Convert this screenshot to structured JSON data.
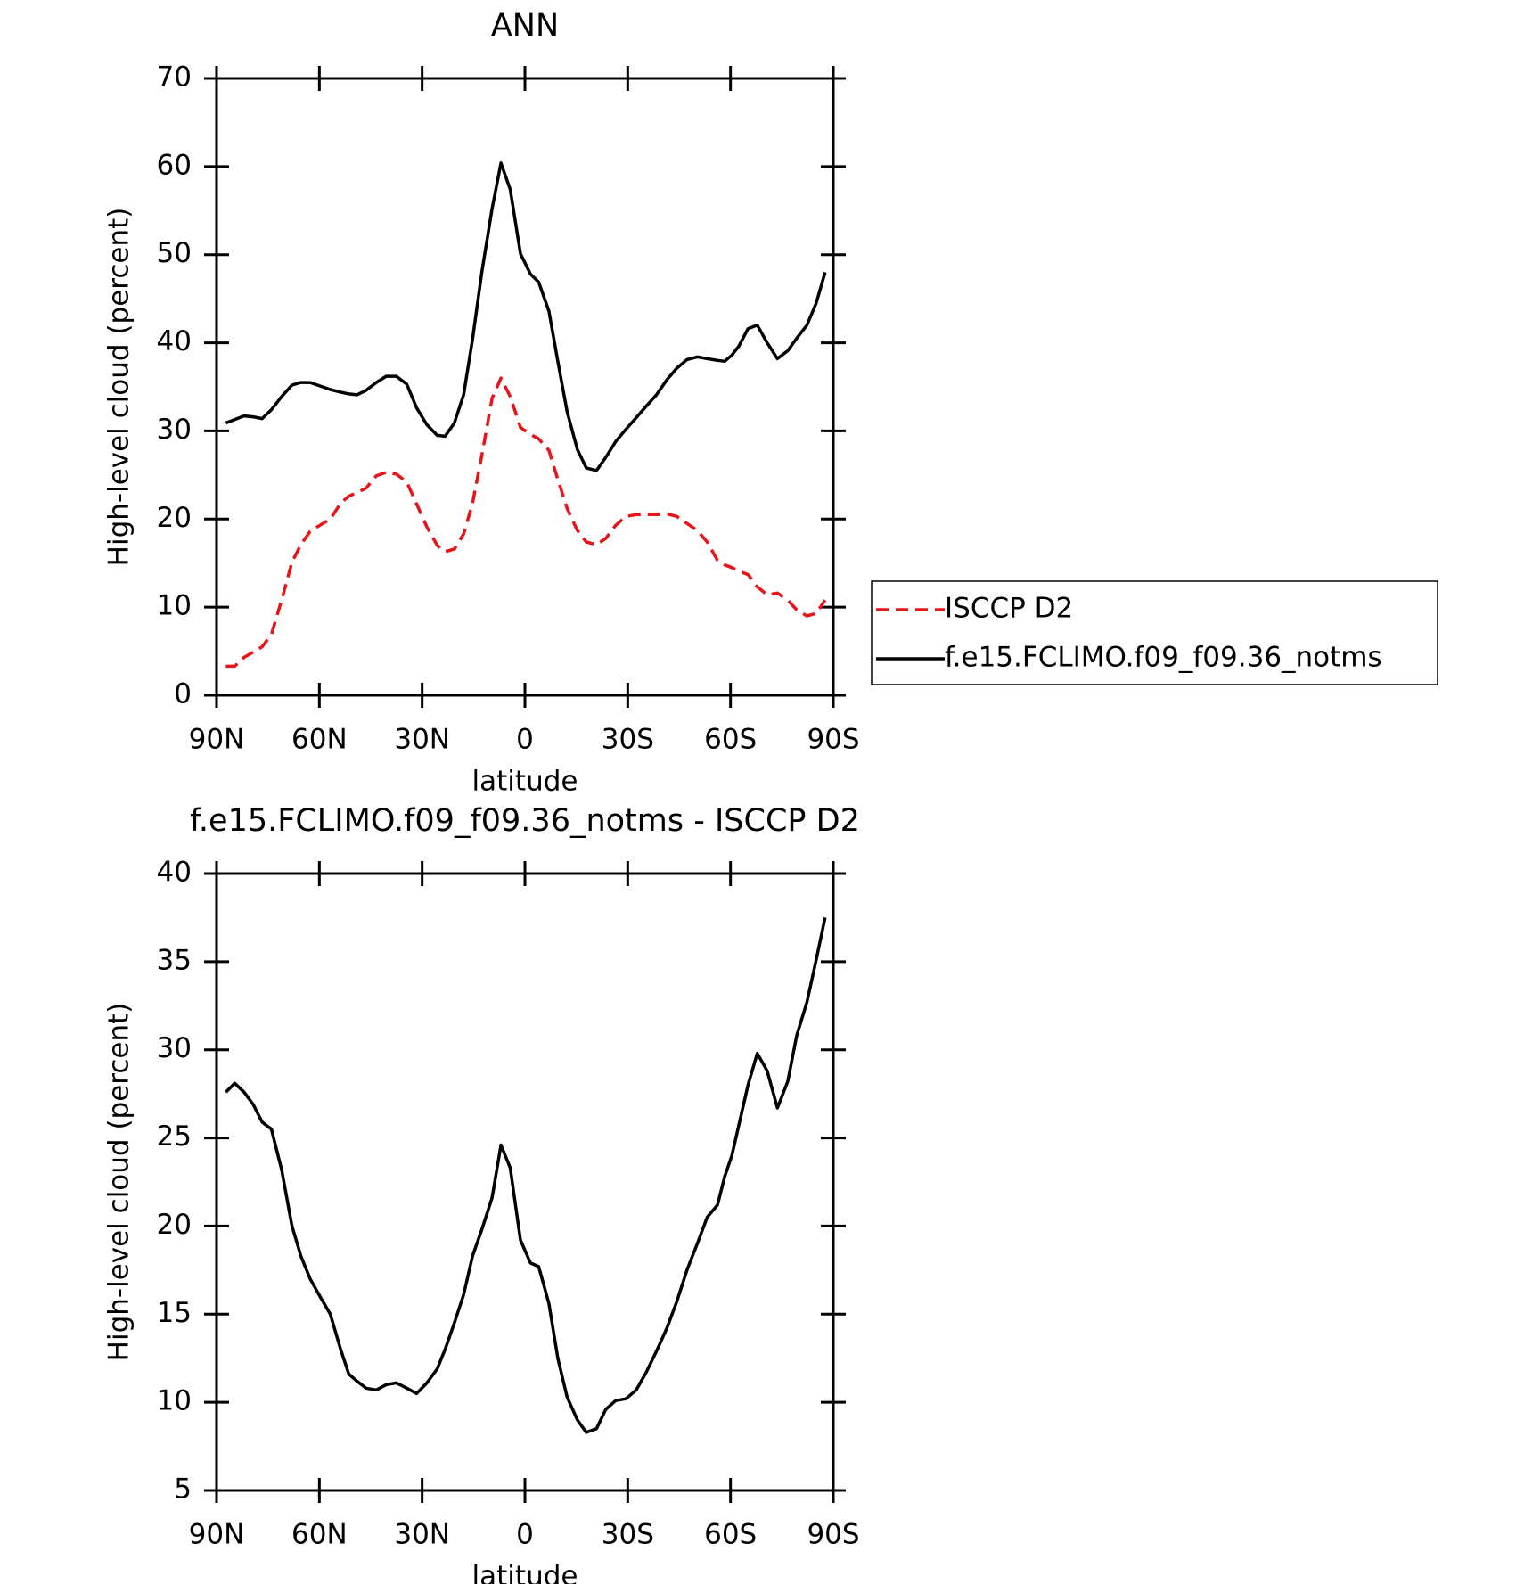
{
  "chart_data": [
    {
      "type": "line",
      "title": "ANN",
      "xlabel": "latitude",
      "ylabel": "High-level cloud (percent)",
      "x": [
        87.3,
        84.7,
        82.0,
        79.3,
        76.7,
        74.0,
        71.0,
        68.0,
        65.4,
        62.7,
        59.8,
        56.8,
        53.8,
        51.4,
        49.0,
        46.4,
        43.4,
        40.5,
        37.5,
        34.5,
        31.6,
        28.6,
        25.6,
        23.3,
        20.6,
        17.9,
        15.3,
        12.6,
        9.6,
        7.0,
        4.3,
        1.3,
        -1.6,
        -4.0,
        -7.0,
        -9.6,
        -12.3,
        -15.3,
        -17.9,
        -20.9,
        -23.6,
        -26.5,
        -29.5,
        -32.5,
        -35.4,
        -38.4,
        -41.4,
        -44.3,
        -47.3,
        -50.3,
        -53.2,
        -56.2,
        -58.3,
        -60.4,
        -62.4,
        -65.1,
        -67.8,
        -70.7,
        -73.7,
        -76.7,
        -79.3,
        -82.3,
        -85.0,
        -87.6
      ],
      "series": [
        {
          "name": "ISCCP D2",
          "color": "#e8141a",
          "line_style": "dashed",
          "values": [
            3.3,
            3.3,
            4.3,
            4.9,
            5.5,
            6.9,
            10.8,
            15.1,
            17.1,
            18.6,
            19.3,
            20,
            21.8,
            22.6,
            23,
            23.5,
            24.9,
            25.3,
            25.1,
            24.2,
            21.7,
            19.1,
            17,
            16.3,
            16.6,
            18.3,
            21.8,
            27.2,
            33.7,
            36,
            33.9,
            30.4,
            29.6,
            29.1,
            27.8,
            24.5,
            21.2,
            18.7,
            17.4,
            17.1,
            17.8,
            19.3,
            20.3,
            20.5,
            20.5,
            20.5,
            20.6,
            20.3,
            19.5,
            18.7,
            17.4,
            15.3,
            14.8,
            14.5,
            14.1,
            13.7,
            12.3,
            11.4,
            11.6,
            10.8,
            9.7,
            9,
            9.3,
            10.8
          ]
        },
        {
          "name": "f.e15.FCLIMO.f09_f09.36_notms",
          "color": "#000000",
          "line_style": "solid",
          "values": [
            30.9,
            31.3,
            31.7,
            31.6,
            31.4,
            32.4,
            33.9,
            35.2,
            35.5,
            35.5,
            35.1,
            34.7,
            34.4,
            34.2,
            34.1,
            34.6,
            35.5,
            36.2,
            36.2,
            35.3,
            32.6,
            30.7,
            29.5,
            29.4,
            30.9,
            34.1,
            40.4,
            48,
            55.2,
            60.4,
            57.4,
            50.1,
            47.8,
            46.9,
            43.6,
            37.9,
            32.2,
            27.9,
            25.8,
            25.5,
            27,
            28.8,
            30.2,
            31.5,
            32.8,
            34.1,
            35.8,
            37.1,
            38.1,
            38.4,
            38.2,
            38,
            37.9,
            38.6,
            39.6,
            41.6,
            42,
            40,
            38.2,
            39.1,
            40.5,
            42,
            44.5,
            48
          ]
        }
      ],
      "xlim": [
        90,
        -90
      ],
      "xticks": [
        {
          "value": 90,
          "label": "90N"
        },
        {
          "value": 60,
          "label": "60N"
        },
        {
          "value": 30,
          "label": "30N"
        },
        0,
        {
          "value": -30,
          "label": "30S"
        },
        {
          "value": -60,
          "label": "60S"
        },
        {
          "value": -90,
          "label": "90S"
        }
      ],
      "ylim": [
        0,
        70
      ],
      "yticks": [
        0,
        10,
        20,
        30,
        40,
        50,
        60,
        70
      ],
      "legend": "right"
    },
    {
      "type": "line",
      "title": "f.e15.FCLIMO.f09_f09.36_notms - ISCCP D2",
      "xlabel": "latitude",
      "ylabel": "High-level cloud (percent)",
      "x": [
        87.3,
        84.7,
        82.0,
        79.3,
        76.7,
        74.0,
        71.0,
        68.0,
        65.4,
        62.7,
        59.8,
        56.8,
        53.8,
        51.4,
        49.0,
        46.4,
        43.4,
        40.5,
        37.5,
        34.5,
        31.6,
        28.6,
        25.6,
        23.3,
        20.6,
        17.9,
        15.3,
        12.6,
        9.6,
        7.0,
        4.3,
        1.3,
        -1.6,
        -4.0,
        -7.0,
        -9.6,
        -12.3,
        -15.3,
        -17.9,
        -20.9,
        -23.6,
        -26.5,
        -29.5,
        -32.5,
        -35.4,
        -38.4,
        -41.4,
        -44.3,
        -47.3,
        -50.3,
        -53.2,
        -56.2,
        -58.3,
        -60.4,
        -62.4,
        -65.1,
        -67.8,
        -70.7,
        -73.7,
        -76.7,
        -79.3,
        -82.3,
        -85.0,
        -87.6
      ],
      "series": [
        {
          "color": "#000000",
          "line_style": "solid",
          "values": [
            27.6,
            28.1,
            27.6,
            26.9,
            25.9,
            25.5,
            23.2,
            20,
            18.3,
            17,
            16,
            15,
            13,
            11.6,
            11.2,
            10.8,
            10.7,
            11,
            11.1,
            10.8,
            10.5,
            11.1,
            11.9,
            13,
            14.5,
            16.1,
            18.3,
            19.8,
            21.6,
            24.6,
            23.3,
            19.2,
            17.9,
            17.7,
            15.6,
            12.5,
            10.3,
            9,
            8.3,
            8.5,
            9.6,
            10.1,
            10.2,
            10.7,
            11.7,
            12.9,
            14.2,
            15.7,
            17.5,
            19,
            20.5,
            21.2,
            22.8,
            24,
            25.7,
            28,
            29.8,
            28.8,
            26.7,
            28.2,
            30.8,
            32.7,
            35.1,
            37.5
          ]
        }
      ],
      "xlim": [
        90,
        -90
      ],
      "xticks": [
        {
          "value": 90,
          "label": "90N"
        },
        {
          "value": 60,
          "label": "60N"
        },
        {
          "value": 30,
          "label": "30N"
        },
        0,
        {
          "value": -30,
          "label": "30S"
        },
        {
          "value": -60,
          "label": "60S"
        },
        {
          "value": -90,
          "label": "90S"
        }
      ],
      "ylim": [
        5,
        40
      ],
      "yticks": [
        5,
        10,
        15,
        20,
        25,
        30,
        35,
        40
      ]
    }
  ]
}
